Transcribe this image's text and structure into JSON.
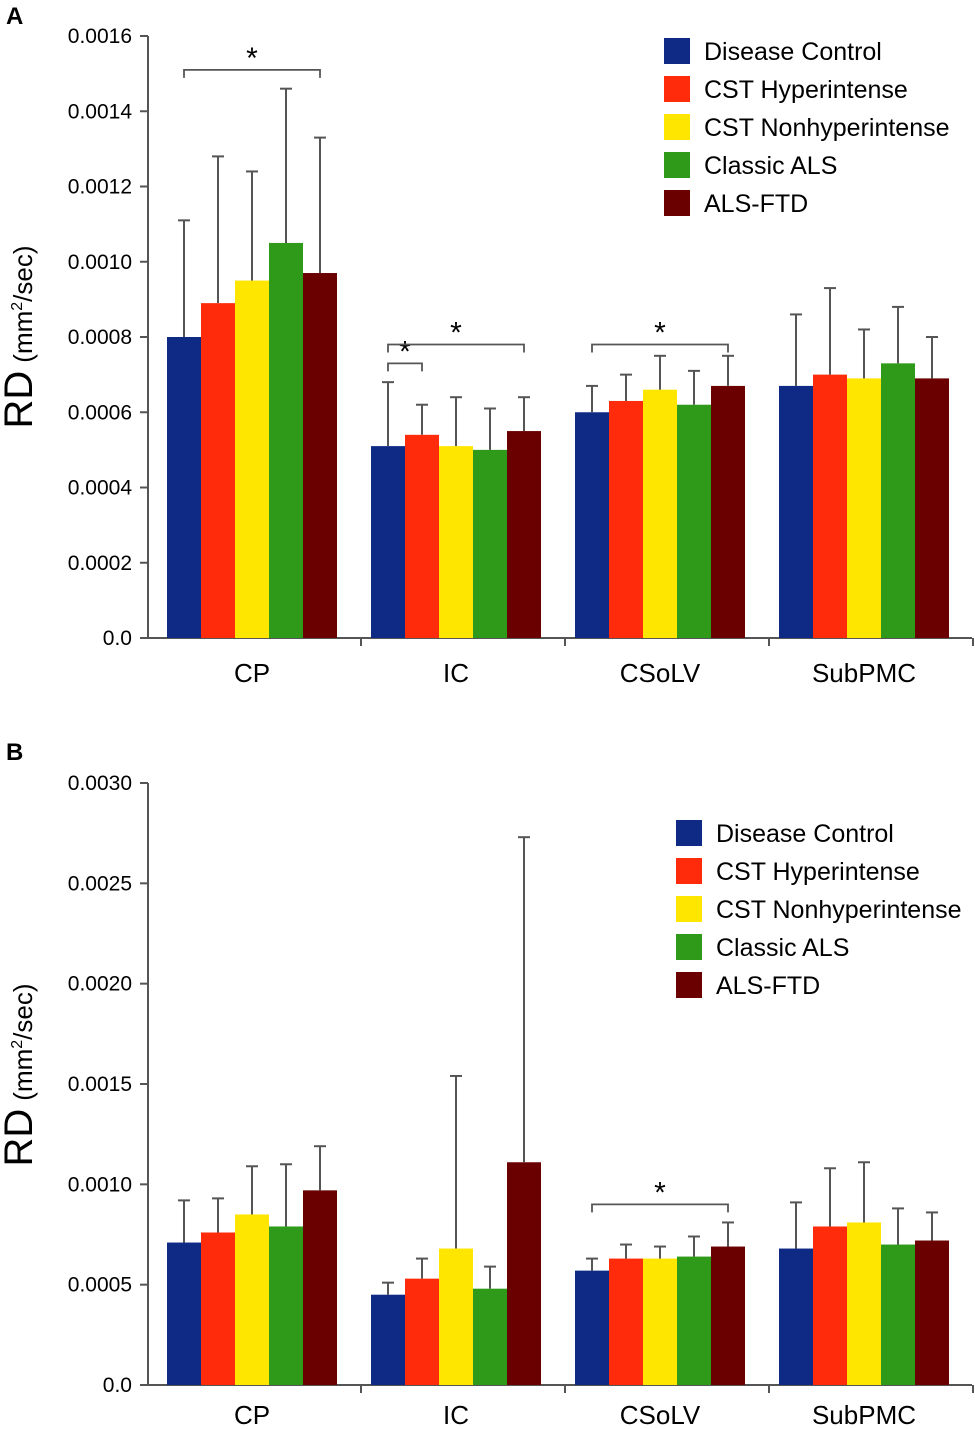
{
  "chart_data": [
    {
      "panel": "A",
      "type": "bar",
      "categories": [
        "CP",
        "IC",
        "CSoLV",
        "SubPMC"
      ],
      "series": [
        {
          "name": "Disease Control",
          "color": "#0f2a85",
          "values": [
            0.0008,
            0.00051,
            0.0006,
            0.00067
          ],
          "errors": [
            0.00031,
            0.00017,
            7e-05,
            0.00019
          ]
        },
        {
          "name": "CST Hyperintense",
          "color": "#ff2b0a",
          "values": [
            0.00089,
            0.00054,
            0.00063,
            0.0007
          ],
          "errors": [
            0.00039,
            8e-05,
            7e-05,
            0.00023
          ]
        },
        {
          "name": "CST Nonhyperintense",
          "color": "#ffe600",
          "values": [
            0.00095,
            0.00051,
            0.00066,
            0.00069
          ],
          "errors": [
            0.00029,
            0.00013,
            9e-05,
            0.00013
          ]
        },
        {
          "name": "Classic ALS",
          "color": "#2f9a1a",
          "values": [
            0.00105,
            0.0005,
            0.00062,
            0.00073
          ],
          "errors": [
            0.00041,
            0.00011,
            9e-05,
            0.00015
          ]
        },
        {
          "name": "ALS-FTD",
          "color": "#6a0000",
          "values": [
            0.00097,
            0.00055,
            0.00067,
            0.00069
          ],
          "errors": [
            0.00036,
            9e-05,
            8e-05,
            0.00011
          ]
        }
      ],
      "ylim": [
        0,
        0.0016
      ],
      "yticks": [
        "0.0",
        "0.0002",
        "0.0004",
        "0.0006",
        "0.0008",
        "0.0010",
        "0.0012",
        "0.0014",
        "0.0016"
      ],
      "ylabel_main": "RD",
      "ylabel_unit_pre": "(mm",
      "ylabel_unit_sup": "2",
      "ylabel_unit_post": "/sec)",
      "legend_position": "top-right",
      "significance": [
        {
          "category": "CP",
          "from_series": 0,
          "to_series": 4,
          "level": 0.00151,
          "label": "*"
        },
        {
          "category": "IC",
          "from_series": 0,
          "to_series": 1,
          "level": 0.00073,
          "label": "*"
        },
        {
          "category": "IC",
          "from_series": 0,
          "to_series": 4,
          "level": 0.00078,
          "label": "*"
        },
        {
          "category": "CSoLV",
          "from_series": 0,
          "to_series": 4,
          "level": 0.00078,
          "label": "*"
        }
      ]
    },
    {
      "panel": "B",
      "type": "bar",
      "categories": [
        "CP",
        "IC",
        "CSoLV",
        "SubPMC"
      ],
      "series": [
        {
          "name": "Disease Control",
          "color": "#0f2a85",
          "values": [
            0.00071,
            0.00045,
            0.00057,
            0.00068
          ],
          "errors": [
            0.00021,
            6e-05,
            6e-05,
            0.00023
          ]
        },
        {
          "name": "CST Hyperintense",
          "color": "#ff2b0a",
          "values": [
            0.00076,
            0.00053,
            0.00063,
            0.00079
          ],
          "errors": [
            0.00017,
            0.0001,
            7e-05,
            0.00029
          ]
        },
        {
          "name": "CST Nonhyperintense",
          "color": "#ffe600",
          "values": [
            0.00085,
            0.00068,
            0.00063,
            0.00081
          ],
          "errors": [
            0.00024,
            0.00086,
            6e-05,
            0.0003
          ]
        },
        {
          "name": "Classic ALS",
          "color": "#2f9a1a",
          "values": [
            0.00079,
            0.00048,
            0.00064,
            0.0007
          ],
          "errors": [
            0.00031,
            0.00011,
            0.0001,
            0.00018
          ]
        },
        {
          "name": "ALS-FTD",
          "color": "#6a0000",
          "values": [
            0.00097,
            0.00111,
            0.00069,
            0.00072
          ],
          "errors": [
            0.00022,
            0.00162,
            0.00012,
            0.00014
          ]
        }
      ],
      "ylim": [
        0,
        0.003
      ],
      "yticks": [
        "0.0",
        "0.0005",
        "0.0010",
        "0.0015",
        "0.0020",
        "0.0025",
        "0.0030"
      ],
      "ylabel_main": "RD",
      "ylabel_unit_pre": "(mm",
      "ylabel_unit_sup": "2",
      "ylabel_unit_post": "/sec)",
      "legend_position": "top-right",
      "significance": [
        {
          "category": "CSoLV",
          "from_series": 0,
          "to_series": 4,
          "level": 0.0009,
          "label": "*"
        }
      ]
    }
  ],
  "panel_labels": {
    "a": "A",
    "b": "B"
  }
}
